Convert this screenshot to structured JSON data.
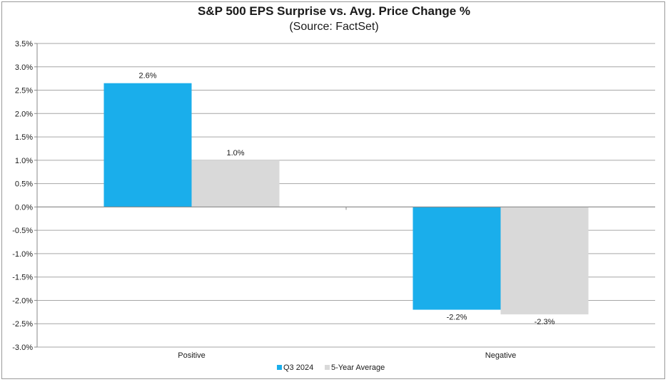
{
  "chart_data": {
    "type": "bar",
    "title": "S&P 500 EPS Surprise vs. Avg. Price Change %",
    "subtitle": "(Source: FactSet)",
    "categories": [
      "Positive",
      "Negative"
    ],
    "series": [
      {
        "name": "Q3 2024",
        "values": [
          2.65,
          -2.2
        ],
        "labels": [
          "2.6%",
          "-2.2%"
        ],
        "color": "#1aaeeb"
      },
      {
        "name": "5-Year Average",
        "values": [
          1.0,
          -2.3
        ],
        "labels": [
          "1.0%",
          "-2.3%"
        ],
        "color": "#d9d9d9"
      }
    ],
    "yticks": [
      "3.5%",
      "3.0%",
      "2.5%",
      "2.0%",
      "1.5%",
      "1.0%",
      "0.5%",
      "0.0%",
      "-0.5%",
      "-1.0%",
      "-1.5%",
      "-2.0%",
      "-2.5%",
      "-3.0%"
    ],
    "ylim": [
      -3.0,
      3.5
    ],
    "ystep": 0.5,
    "xlabel": "",
    "ylabel": "",
    "legend_position": "bottom",
    "grid": true
  }
}
